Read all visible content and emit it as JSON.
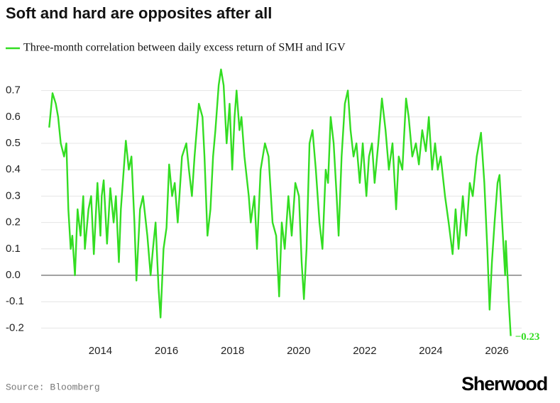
{
  "chart_data": {
    "type": "line",
    "title": "Soft and hard are opposites after all",
    "source": "Source: Bloomberg",
    "brand": "Sherwood",
    "series": [
      {
        "name": "Three-month correlation between daily excess return of SMH and IGV",
        "color": "#33dd22",
        "x": [
          2012.45,
          2012.55,
          2012.65,
          2012.72,
          2012.8,
          2012.9,
          2012.97,
          2013.03,
          2013.1,
          2013.15,
          2013.23,
          2013.31,
          2013.4,
          2013.48,
          2013.53,
          2013.64,
          2013.72,
          2013.8,
          2013.91,
          2014.0,
          2014.04,
          2014.1,
          2014.2,
          2014.3,
          2014.4,
          2014.47,
          2014.56,
          2014.62,
          2014.77,
          2014.86,
          2014.94,
          2015.03,
          2015.09,
          2015.2,
          2015.29,
          2015.42,
          2015.52,
          2015.59,
          2015.67,
          2015.76,
          2015.82,
          2015.91,
          2016.0,
          2016.08,
          2016.17,
          2016.25,
          2016.34,
          2016.47,
          2016.6,
          2016.68,
          2016.77,
          2016.85,
          2016.98,
          2017.09,
          2017.15,
          2017.24,
          2017.33,
          2017.41,
          2017.48,
          2017.58,
          2017.65,
          2017.73,
          2017.82,
          2017.91,
          2017.99,
          2018.06,
          2018.12,
          2018.21,
          2018.27,
          2018.36,
          2018.49,
          2018.55,
          2018.66,
          2018.74,
          2018.85,
          2018.98,
          2019.09,
          2019.21,
          2019.32,
          2019.41,
          2019.49,
          2019.58,
          2019.69,
          2019.79,
          2019.9,
          2020.01,
          2020.09,
          2020.16,
          2020.24,
          2020.33,
          2020.42,
          2020.52,
          2020.63,
          2020.72,
          2020.82,
          2020.89,
          2020.97,
          2021.06,
          2021.15,
          2021.21,
          2021.3,
          2021.4,
          2021.49,
          2021.57,
          2021.66,
          2021.75,
          2021.85,
          2021.94,
          2022.05,
          2022.13,
          2022.22,
          2022.3,
          2022.41,
          2022.52,
          2022.63,
          2022.73,
          2022.84,
          2022.95,
          2023.03,
          2023.14,
          2023.25,
          2023.33,
          2023.44,
          2023.55,
          2023.64,
          2023.74,
          2023.85,
          2023.94,
          2024.04,
          2024.13,
          2024.21,
          2024.3,
          2024.43,
          2024.54,
          2024.66,
          2024.75,
          2024.84,
          2024.97,
          2025.07,
          2025.18,
          2025.27,
          2025.39,
          2025.52,
          2025.62,
          2025.71,
          2025.78,
          2025.85,
          2025.93,
          2026.02,
          2026.08,
          2026.16,
          2026.25,
          2026.27,
          2026.36,
          2026.42
        ],
        "values": [
          0.56,
          0.69,
          0.65,
          0.6,
          0.5,
          0.45,
          0.5,
          0.25,
          0.1,
          0.15,
          0.0,
          0.25,
          0.15,
          0.3,
          0.1,
          0.25,
          0.3,
          0.08,
          0.35,
          0.15,
          0.3,
          0.36,
          0.12,
          0.33,
          0.2,
          0.3,
          0.05,
          0.25,
          0.51,
          0.4,
          0.45,
          0.2,
          -0.02,
          0.25,
          0.3,
          0.15,
          0.0,
          0.1,
          0.2,
          -0.05,
          -0.16,
          0.1,
          0.18,
          0.42,
          0.3,
          0.35,
          0.2,
          0.45,
          0.5,
          0.4,
          0.3,
          0.45,
          0.65,
          0.6,
          0.45,
          0.15,
          0.25,
          0.45,
          0.55,
          0.72,
          0.78,
          0.72,
          0.5,
          0.65,
          0.4,
          0.6,
          0.7,
          0.55,
          0.6,
          0.45,
          0.3,
          0.2,
          0.3,
          0.1,
          0.4,
          0.5,
          0.45,
          0.2,
          0.15,
          -0.08,
          0.2,
          0.1,
          0.3,
          0.15,
          0.35,
          0.3,
          0.05,
          -0.09,
          0.1,
          0.5,
          0.55,
          0.4,
          0.2,
          0.1,
          0.4,
          0.35,
          0.6,
          0.5,
          0.3,
          0.15,
          0.45,
          0.65,
          0.7,
          0.55,
          0.45,
          0.5,
          0.35,
          0.5,
          0.3,
          0.45,
          0.5,
          0.35,
          0.5,
          0.67,
          0.55,
          0.4,
          0.5,
          0.25,
          0.45,
          0.4,
          0.67,
          0.6,
          0.45,
          0.5,
          0.42,
          0.55,
          0.47,
          0.6,
          0.4,
          0.5,
          0.4,
          0.45,
          0.3,
          0.2,
          0.08,
          0.25,
          0.1,
          0.3,
          0.15,
          0.35,
          0.3,
          0.45,
          0.54,
          0.35,
          0.1,
          -0.13,
          0.05,
          0.2,
          0.35,
          0.38,
          0.2,
          0.0,
          0.13,
          -0.1,
          -0.23
        ],
        "end_label": "−0.23"
      }
    ],
    "xlim": [
      2012.25,
      2026.75
    ],
    "xticks": [
      2014,
      2016,
      2018,
      2020,
      2022,
      2024,
      2026
    ],
    "ylim": [
      -0.25,
      0.8
    ],
    "yticks": [
      -0.2,
      -0.1,
      {
        "value": 0,
        "label": "0.0"
      },
      0.1,
      0.2,
      0.3,
      0.4,
      0.5,
      0.6,
      0.7
    ],
    "grid": true
  }
}
